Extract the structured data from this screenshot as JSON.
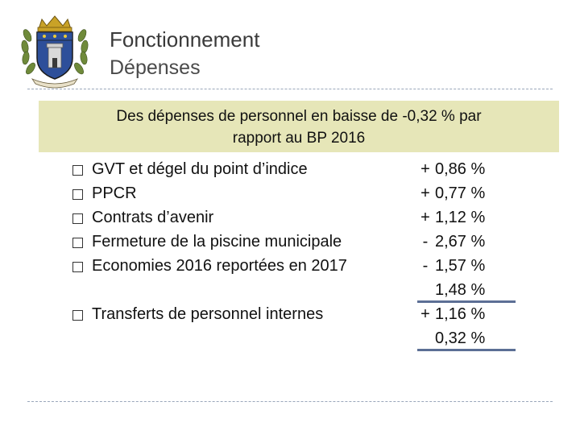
{
  "header": {
    "title": "Fonctionnement",
    "subtitle": "Dépenses"
  },
  "banner": {
    "line1": "Des dépenses de personnel en baisse de -0,32 % par",
    "line2": "rapport au BP 2016"
  },
  "items": [
    {
      "label": "GVT et dégel du point d’indice",
      "sign": "+",
      "value": "0,86 %"
    },
    {
      "label": "PPCR",
      "sign": "+",
      "value": "0,77 %"
    },
    {
      "label": "Contrats d’avenir",
      "sign": "+",
      "value": "1,12 %"
    },
    {
      "label": "Fermeture de la piscine municipale",
      "sign": "-",
      "value": "2,67 %"
    },
    {
      "label": "Economies 2016 reportées en 2017",
      "sign": "-",
      "value": "1,57 %"
    }
  ],
  "subtotal": {
    "value": "1,48 %"
  },
  "transfer": {
    "label": "Transferts de personnel internes",
    "sign": "+",
    "value": "1,16 %"
  },
  "total": {
    "value": "0,32 %"
  },
  "colors": {
    "banner_bg": "#e6e6b8",
    "rule": "#9aa7bb",
    "underline": "#5c6f95"
  },
  "icons": {
    "crest": "coat-of-arms-icon",
    "bullet": "checkbox-icon"
  }
}
